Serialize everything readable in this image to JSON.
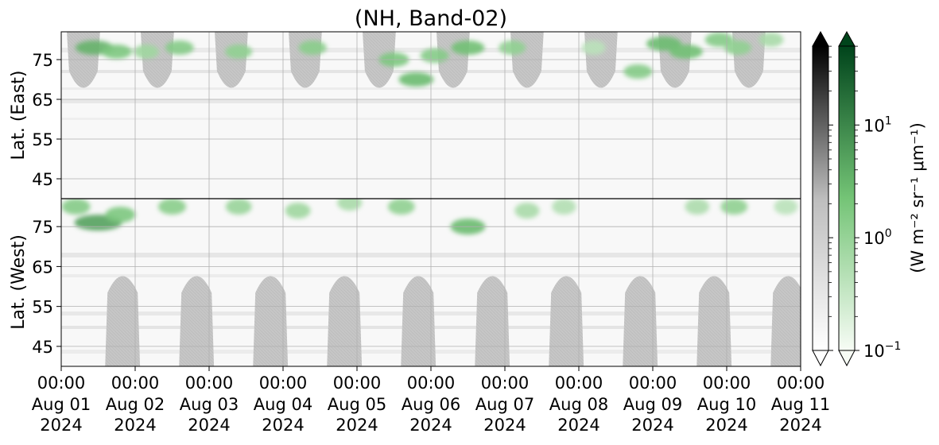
{
  "chart_data": {
    "type": "heatmap",
    "title": "(NH, Band-02)",
    "panels": [
      {
        "name": "east",
        "ylabel": "Lat. (East)",
        "yticks": [
          45,
          55,
          65,
          75
        ],
        "ylim": [
          40,
          82
        ]
      },
      {
        "name": "west",
        "ylabel": "Lat. (West)",
        "yticks": [
          75,
          65,
          55,
          45
        ],
        "ylim": [
          82,
          40
        ]
      }
    ],
    "x_ticks": [
      {
        "time": "00:00",
        "date": "Aug 01",
        "year": "2024"
      },
      {
        "time": "00:00",
        "date": "Aug 02",
        "year": "2024"
      },
      {
        "time": "00:00",
        "date": "Aug 03",
        "year": "2024"
      },
      {
        "time": "00:00",
        "date": "Aug 04",
        "year": "2024"
      },
      {
        "time": "00:00",
        "date": "Aug 05",
        "year": "2024"
      },
      {
        "time": "00:00",
        "date": "Aug 06",
        "year": "2024"
      },
      {
        "time": "00:00",
        "date": "Aug 07",
        "year": "2024"
      },
      {
        "time": "00:00",
        "date": "Aug 08",
        "year": "2024"
      },
      {
        "time": "00:00",
        "date": "Aug 09",
        "year": "2024"
      },
      {
        "time": "00:00",
        "date": "Aug 10",
        "year": "2024"
      },
      {
        "time": "00:00",
        "date": "Aug 11",
        "year": "2024"
      }
    ],
    "xlim": [
      "2024-08-01 00:00",
      "2024-08-11 00:00"
    ],
    "grid": true,
    "colorbars": [
      {
        "cmap": "Greys",
        "scale": "log",
        "extend": "both"
      },
      {
        "cmap": "Greens",
        "scale": "log",
        "extend": "both"
      }
    ],
    "colorbar_ticks": [
      {
        "base": "10",
        "exp": "1"
      },
      {
        "base": "10",
        "exp": "0"
      },
      {
        "base": "10",
        "exp": "−1"
      }
    ],
    "colorbar_label": "(W m⁻² sr⁻¹ μm⁻¹)",
    "colors": {
      "daylight_grey": "#c8c8c8",
      "green_dark": "#17813b",
      "green_mid": "#52b25f",
      "green_light": "#a8dca0"
    },
    "east_daylight_days": [
      0.3,
      1.3,
      2.3,
      3.3,
      4.3,
      5.3,
      6.3,
      7.3,
      8.3,
      9.3
    ],
    "west_daylight_days": [
      0.83,
      1.83,
      2.83,
      3.83,
      4.83,
      5.83,
      6.83,
      7.83,
      8.83,
      9.83
    ],
    "aurora_east": [
      {
        "day": 0.45,
        "lat": 78,
        "intensity": 5
      },
      {
        "day": 0.75,
        "lat": 77,
        "intensity": 2.5
      },
      {
        "day": 1.15,
        "lat": 77,
        "intensity": 1
      },
      {
        "day": 1.6,
        "lat": 78,
        "intensity": 2
      },
      {
        "day": 2.4,
        "lat": 77,
        "intensity": 1.5
      },
      {
        "day": 3.4,
        "lat": 78,
        "intensity": 1.8
      },
      {
        "day": 4.5,
        "lat": 75,
        "intensity": 2.5
      },
      {
        "day": 4.8,
        "lat": 70,
        "intensity": 4
      },
      {
        "day": 5.05,
        "lat": 76,
        "intensity": 2
      },
      {
        "day": 5.5,
        "lat": 78,
        "intensity": 3.5
      },
      {
        "day": 6.1,
        "lat": 78,
        "intensity": 1.5
      },
      {
        "day": 7.2,
        "lat": 78,
        "intensity": 0.5
      },
      {
        "day": 7.8,
        "lat": 72,
        "intensity": 2
      },
      {
        "day": 8.15,
        "lat": 79,
        "intensity": 4
      },
      {
        "day": 8.45,
        "lat": 77,
        "intensity": 3.5
      },
      {
        "day": 8.9,
        "lat": 80,
        "intensity": 2
      },
      {
        "day": 9.15,
        "lat": 78,
        "intensity": 1.5
      },
      {
        "day": 9.6,
        "lat": 80,
        "intensity": 0.8
      }
    ],
    "aurora_west": [
      {
        "day": 0.2,
        "lat": 80,
        "intensity": 2
      },
      {
        "day": 0.5,
        "lat": 76,
        "intensity": 8
      },
      {
        "day": 0.8,
        "lat": 78,
        "intensity": 2.5
      },
      {
        "day": 1.5,
        "lat": 80,
        "intensity": 1.8
      },
      {
        "day": 2.4,
        "lat": 80,
        "intensity": 1.2
      },
      {
        "day": 3.2,
        "lat": 79,
        "intensity": 1
      },
      {
        "day": 3.9,
        "lat": 81,
        "intensity": 0.8
      },
      {
        "day": 4.6,
        "lat": 80,
        "intensity": 1.5
      },
      {
        "day": 5.5,
        "lat": 75,
        "intensity": 4
      },
      {
        "day": 6.3,
        "lat": 79,
        "intensity": 0.8
      },
      {
        "day": 6.8,
        "lat": 80,
        "intensity": 0.6
      },
      {
        "day": 8.6,
        "lat": 80,
        "intensity": 0.7
      },
      {
        "day": 9.1,
        "lat": 80,
        "intensity": 1.5
      },
      {
        "day": 9.8,
        "lat": 80,
        "intensity": 0.5
      }
    ]
  }
}
